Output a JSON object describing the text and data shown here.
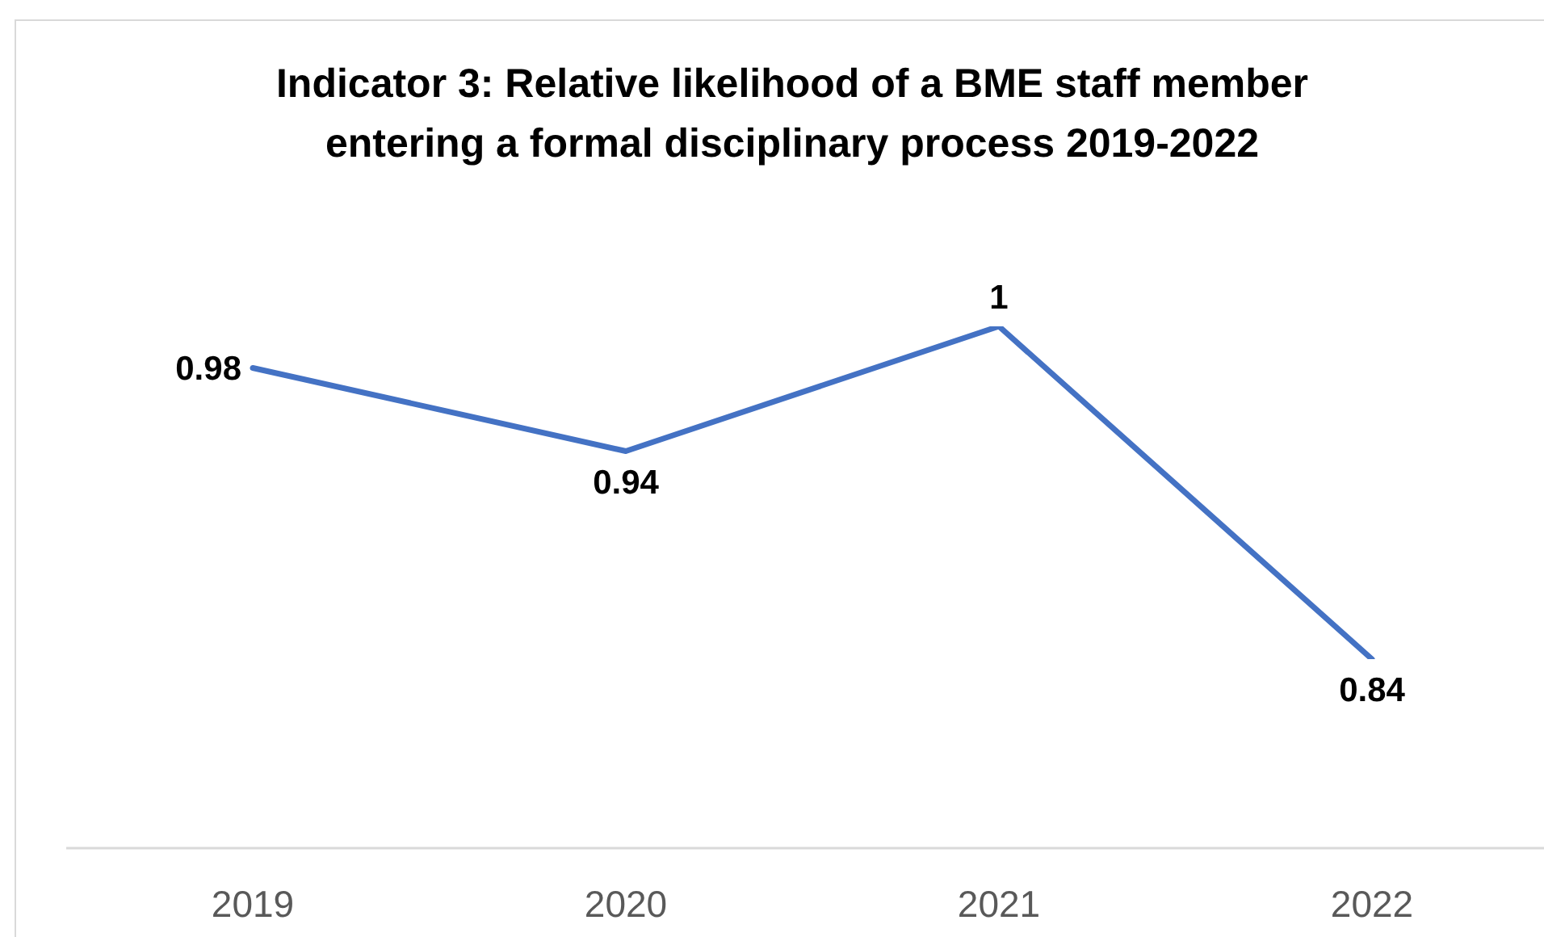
{
  "chart_data": {
    "type": "line",
    "title": "Indicator 3: Relative likelihood of a BME staff member entering a formal disciplinary process 2019-2022",
    "categories": [
      "2019",
      "2020",
      "2021",
      "2022"
    ],
    "values": [
      0.98,
      0.94,
      1,
      0.84
    ],
    "color": "#4472c4",
    "data_labels": true
  }
}
